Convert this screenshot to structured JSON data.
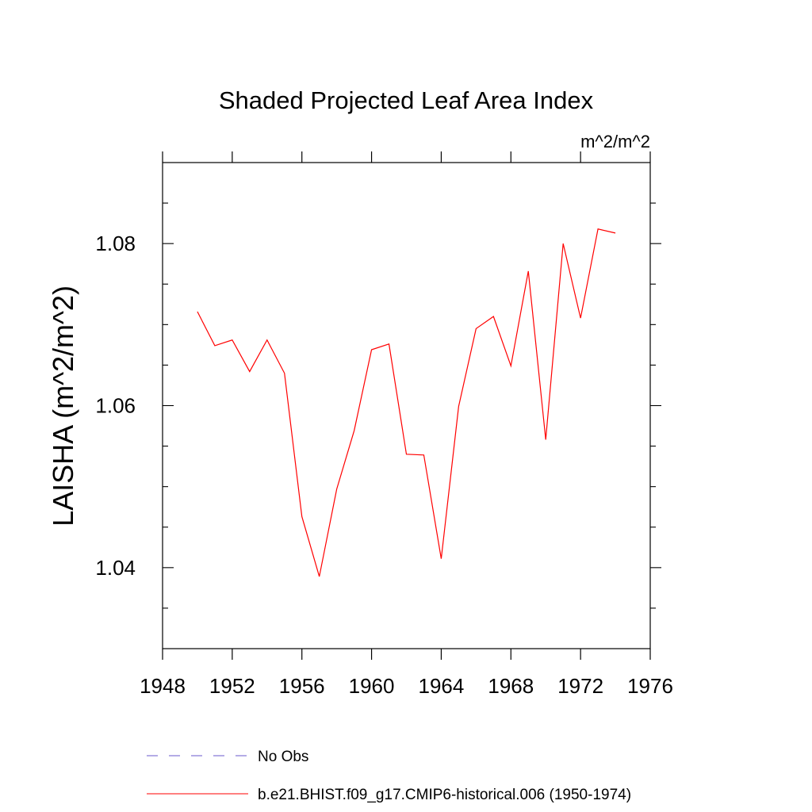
{
  "chart_data": {
    "type": "line",
    "title": "Shaded Projected Leaf Area Index",
    "units": "m^2/m^2",
    "ylabel": "LAISHA  (m^2/m^2)",
    "xlabel": "",
    "xlim": [
      1948,
      1976
    ],
    "ylim": [
      1.03,
      1.09
    ],
    "xticks": [
      1948,
      1952,
      1956,
      1960,
      1964,
      1968,
      1972,
      1976
    ],
    "xtick_labels": [
      "1948",
      "1952",
      "1956",
      "1960",
      "1964",
      "1968",
      "1972",
      "1976"
    ],
    "yticks": [
      1.04,
      1.06,
      1.08
    ],
    "ytick_labels": [
      "1.04",
      "1.06",
      "1.08"
    ],
    "grid": false,
    "series": [
      {
        "name": "b.e21.BHIST.f09_g17.CMIP6-historical.006 (1950-1974)",
        "color": "#ff0000",
        "style": "solid",
        "x": [
          1950,
          1951,
          1952,
          1953,
          1954,
          1955,
          1956,
          1957,
          1958,
          1959,
          1960,
          1961,
          1962,
          1963,
          1964,
          1965,
          1966,
          1967,
          1968,
          1969,
          1970,
          1971,
          1972,
          1973,
          1974
        ],
        "values": [
          1.0716,
          1.0674,
          1.0681,
          1.0642,
          1.0681,
          1.064,
          1.0463,
          1.0389,
          1.0497,
          1.0569,
          1.0669,
          1.0676,
          1.054,
          1.0539,
          1.0411,
          1.0599,
          1.0695,
          1.071,
          1.0649,
          1.0766,
          1.0558,
          1.08,
          1.0708,
          1.0818,
          1.0813
        ]
      }
    ],
    "legend": {
      "placement": "bottom-left",
      "entries": [
        {
          "label": "No Obs",
          "color": "#6a5acd",
          "style": "dashed"
        },
        {
          "label": "b.e21.BHIST.f09_g17.CMIP6-historical.006 (1950-1974)",
          "color": "#ff0000",
          "style": "solid"
        }
      ]
    }
  }
}
